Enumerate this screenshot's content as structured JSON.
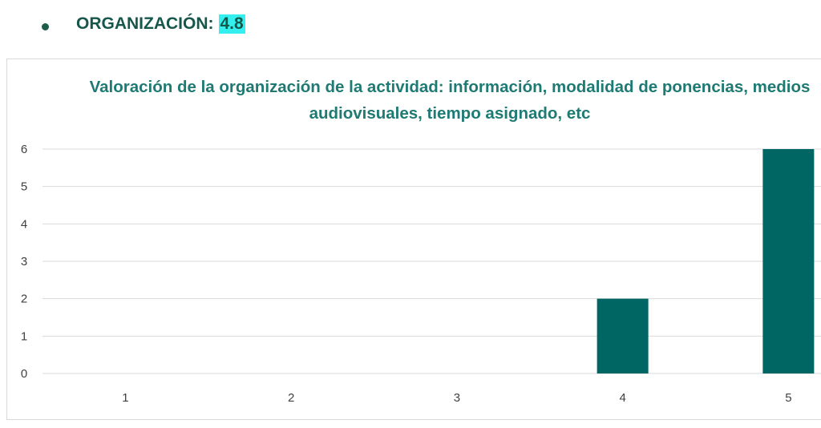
{
  "heading": {
    "label": "ORGANIZACIÓN:",
    "score": "4.8"
  },
  "colors": {
    "bar": "#006663",
    "title": "#1f7a73",
    "heading": "#17574b",
    "highlight": "#33f0ee",
    "grid": "#d9d9d9"
  },
  "chart_data": {
    "type": "bar",
    "title": "Valoración de la organización de la actividad: información, modalidad de ponencias, medios audiovisuales, tiempo asignado, etc",
    "categories": [
      "1",
      "2",
      "3",
      "4",
      "5"
    ],
    "values": [
      0,
      0,
      0,
      2,
      6
    ],
    "xlabel": "",
    "ylabel": "",
    "ylim": [
      0,
      6
    ],
    "yticks": [
      0,
      1,
      2,
      3,
      4,
      5,
      6
    ],
    "grid": true,
    "legend": "none"
  }
}
